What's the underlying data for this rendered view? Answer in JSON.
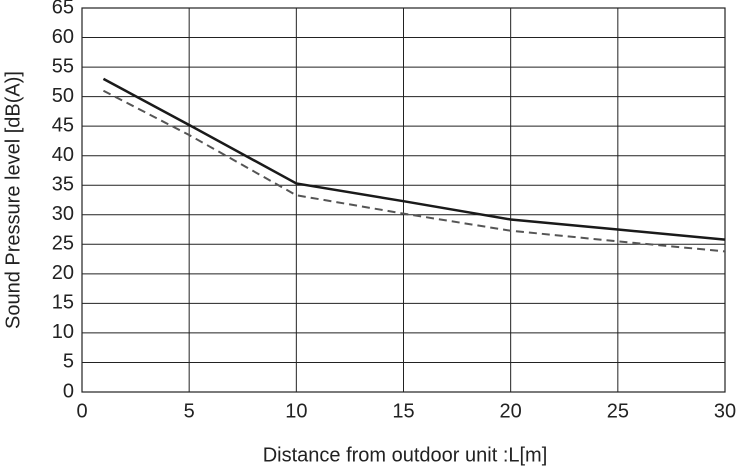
{
  "chart_data": {
    "type": "line",
    "xlabel": "Distance from outdoor unit  :L[m]",
    "ylabel": "Sound Pressure level [dB(A)]",
    "x": [
      1,
      5,
      10,
      15,
      20,
      25,
      30
    ],
    "series": [
      {
        "color": "#1a1a1a",
        "dashed": false,
        "values": [
          53,
          45.2,
          35.3,
          32.3,
          29.2,
          27.5,
          25.8
        ]
      },
      {
        "color": "#555555",
        "dashed": true,
        "values": [
          51,
          43.5,
          33.3,
          30.2,
          27.3,
          25.5,
          23.8
        ]
      }
    ],
    "xlim": [
      0,
      30
    ],
    "xticks": [
      0,
      5,
      10,
      15,
      20,
      25,
      30
    ],
    "ylim": [
      0,
      65
    ],
    "yticks": [
      0,
      5,
      10,
      15,
      20,
      25,
      30,
      35,
      40,
      45,
      50,
      55,
      60,
      65
    ],
    "grid": true
  }
}
